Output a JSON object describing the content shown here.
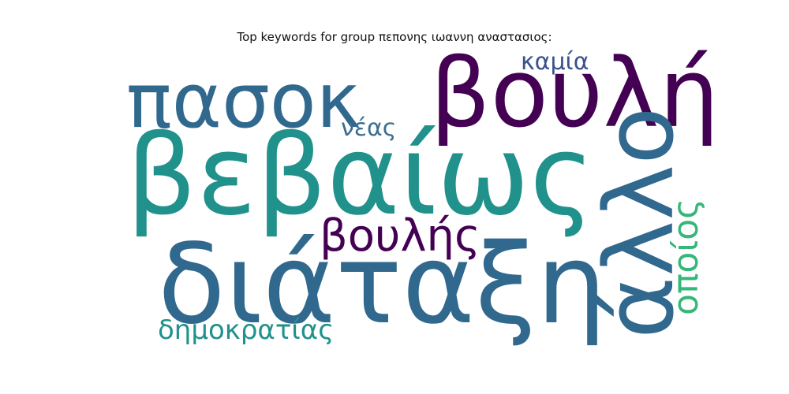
{
  "title": "Top keywords for group πεπονης ιωαννη αναστασιος:",
  "words": [
    {
      "text": "πασοκ",
      "color": "#31688e"
    },
    {
      "text": "βουλή",
      "color": "#440154"
    },
    {
      "text": "καμία",
      "color": "#3b528b"
    },
    {
      "text": "νέας",
      "color": "#3b6e8f"
    },
    {
      "text": "βεβαίως",
      "color": "#21918c"
    },
    {
      "text": "άλλο",
      "color": "#31688e"
    },
    {
      "text": "οποίος",
      "color": "#35b779"
    },
    {
      "text": "βουλής",
      "color": "#440154"
    },
    {
      "text": "διάταξη",
      "color": "#31688e"
    },
    {
      "text": "δημοκρατίας",
      "color": "#21918c"
    }
  ]
}
